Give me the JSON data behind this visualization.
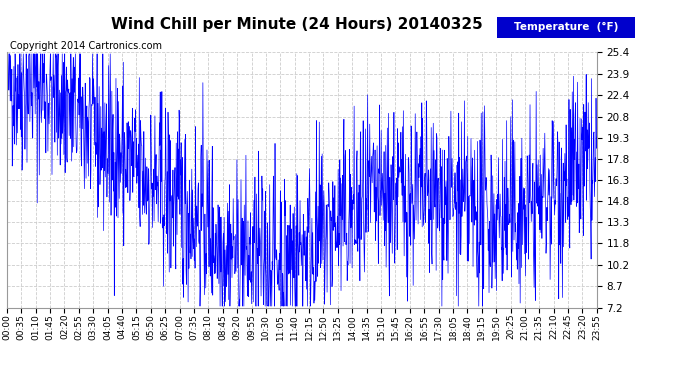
{
  "title": "Wind Chill per Minute (24 Hours) 20140325",
  "copyright": "Copyright 2014 Cartronics.com",
  "legend_label": "Temperature  (°F)",
  "legend_bg": "#0000cc",
  "legend_text_color": "#ffffff",
  "line_color": "#0000ff",
  "bg_color": "#ffffff",
  "plot_bg_color": "#ffffff",
  "grid_color": "#cccccc",
  "yticks": [
    7.2,
    8.7,
    10.2,
    11.8,
    13.3,
    14.8,
    16.3,
    17.8,
    19.3,
    20.8,
    22.4,
    23.9,
    25.4
  ],
  "ymin": 7.2,
  "ymax": 25.4,
  "title_fontsize": 11,
  "copyright_fontsize": 7,
  "xtick_labels": [
    "00:00",
    "00:35",
    "01:10",
    "01:45",
    "02:20",
    "02:55",
    "03:30",
    "04:05",
    "04:40",
    "05:15",
    "05:50",
    "06:25",
    "07:00",
    "07:35",
    "08:10",
    "08:45",
    "09:20",
    "09:55",
    "10:30",
    "11:05",
    "11:40",
    "12:15",
    "12:50",
    "13:25",
    "14:00",
    "14:35",
    "15:10",
    "15:45",
    "16:20",
    "16:55",
    "17:30",
    "18:05",
    "18:40",
    "19:15",
    "19:50",
    "20:25",
    "21:00",
    "21:35",
    "22:10",
    "22:45",
    "23:20",
    "23:55"
  ],
  "num_minutes": 1440,
  "seed": 42,
  "noise_scale": 3.2,
  "trend_points": [
    [
      0.0,
      23.5
    ],
    [
      0.08,
      22.8
    ],
    [
      0.12,
      21.0
    ],
    [
      0.18,
      18.5
    ],
    [
      0.25,
      16.0
    ],
    [
      0.33,
      13.5
    ],
    [
      0.37,
      11.5
    ],
    [
      0.42,
      10.5
    ],
    [
      0.48,
      10.8
    ],
    [
      0.52,
      12.0
    ],
    [
      0.58,
      13.5
    ],
    [
      0.62,
      14.5
    ],
    [
      0.67,
      15.5
    ],
    [
      0.72,
      15.0
    ],
    [
      0.78,
      14.2
    ],
    [
      0.83,
      13.5
    ],
    [
      0.88,
      14.0
    ],
    [
      0.92,
      15.5
    ],
    [
      0.96,
      16.8
    ],
    [
      1.0,
      17.0
    ]
  ]
}
